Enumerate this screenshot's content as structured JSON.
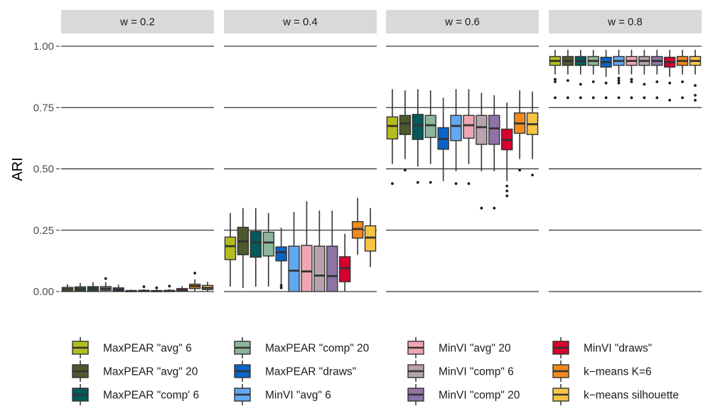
{
  "chart_data": {
    "type": "boxplot",
    "title": "",
    "xlabel": "",
    "ylabel": "ARI",
    "ylim": [
      0,
      1
    ],
    "y_ticks": [
      0.0,
      0.25,
      0.5,
      0.75,
      1.0
    ],
    "y_tick_labels": [
      "0.00",
      "0.25",
      "0.50",
      "0.75",
      "1.00"
    ],
    "legend_position": "bottom",
    "grid": true,
    "methods": [
      {
        "name": "MaxPEAR \"avg\" 6",
        "color": "#B4BD1D"
      },
      {
        "name": "MaxPEAR \"avg\" 20",
        "color": "#4C5A2E"
      },
      {
        "name": "MaxPEAR \"comp' 6",
        "color": "#045A5A"
      },
      {
        "name": "MaxPEAR \"comp\" 20",
        "color": "#8DB59A"
      },
      {
        "name": "MaxPEAR \"draws\"",
        "color": "#0A64C8"
      },
      {
        "name": "MinVI \"avg\" 6",
        "color": "#63A7EF"
      },
      {
        "name": "MinVI \"avg\" 20",
        "color": "#F0A6B2"
      },
      {
        "name": "MinVI \"comp\" 6",
        "color": "#B8A2AE"
      },
      {
        "name": "MinVI \"comp\" 20",
        "color": "#8E73A8"
      },
      {
        "name": "MinVI \"draws\"",
        "color": "#D8002E"
      },
      {
        "name": "k−means K=6",
        "color": "#F28A1E"
      },
      {
        "name": "k−means silhouette",
        "color": "#F7C444"
      }
    ],
    "panels": [
      {
        "label": "w = 0.2",
        "boxes": [
          {
            "q1": 0.003,
            "median": 0.01,
            "q3": 0.017,
            "lo": 0.0,
            "hi": 0.03,
            "outliers": []
          },
          {
            "q1": 0.004,
            "median": 0.011,
            "q3": 0.019,
            "lo": 0.0,
            "hi": 0.035,
            "outliers": []
          },
          {
            "q1": 0.004,
            "median": 0.012,
            "q3": 0.02,
            "lo": 0.0,
            "hi": 0.038,
            "outliers": []
          },
          {
            "q1": 0.005,
            "median": 0.012,
            "q3": 0.02,
            "lo": 0.0,
            "hi": 0.038,
            "outliers": [
              0.053
            ]
          },
          {
            "q1": 0.003,
            "median": 0.008,
            "q3": 0.015,
            "lo": 0.0,
            "hi": 0.028,
            "outliers": []
          },
          {
            "q1": 0.0,
            "median": 0.002,
            "q3": 0.004,
            "lo": 0.0,
            "hi": 0.008,
            "outliers": []
          },
          {
            "q1": 0.0,
            "median": 0.002,
            "q3": 0.005,
            "lo": 0.0,
            "hi": 0.01,
            "outliers": [
              0.02
            ]
          },
          {
            "q1": 0.0,
            "median": 0.002,
            "q3": 0.004,
            "lo": 0.0,
            "hi": 0.008,
            "outliers": [
              0.015
            ]
          },
          {
            "q1": 0.0,
            "median": 0.002,
            "q3": 0.005,
            "lo": 0.0,
            "hi": 0.01,
            "outliers": [
              0.022
            ]
          },
          {
            "q1": 0.002,
            "median": 0.005,
            "q3": 0.012,
            "lo": 0.0,
            "hi": 0.022,
            "outliers": []
          },
          {
            "q1": 0.012,
            "median": 0.022,
            "q3": 0.03,
            "lo": 0.0,
            "hi": 0.05,
            "outliers": [
              0.075
            ]
          },
          {
            "q1": 0.008,
            "median": 0.015,
            "q3": 0.025,
            "lo": 0.0,
            "hi": 0.04,
            "outliers": []
          }
        ]
      },
      {
        "label": "w = 0.4",
        "boxes": [
          {
            "q1": 0.13,
            "median": 0.185,
            "q3": 0.222,
            "lo": 0.02,
            "hi": 0.32,
            "outliers": []
          },
          {
            "q1": 0.15,
            "median": 0.205,
            "q3": 0.262,
            "lo": 0.015,
            "hi": 0.34,
            "outliers": []
          },
          {
            "q1": 0.14,
            "median": 0.2,
            "q3": 0.245,
            "lo": 0.02,
            "hi": 0.34,
            "outliers": []
          },
          {
            "q1": 0.145,
            "median": 0.2,
            "q3": 0.242,
            "lo": 0.02,
            "hi": 0.32,
            "outliers": []
          },
          {
            "q1": 0.125,
            "median": 0.16,
            "q3": 0.182,
            "lo": 0.03,
            "hi": 0.26,
            "outliers": [
              0.015,
              0.025
            ]
          },
          {
            "q1": 0.0,
            "median": 0.085,
            "q3": 0.185,
            "lo": 0.0,
            "hi": 0.325,
            "outliers": []
          },
          {
            "q1": 0.0,
            "median": 0.082,
            "q3": 0.188,
            "lo": 0.0,
            "hi": 0.368,
            "outliers": []
          },
          {
            "q1": 0.0,
            "median": 0.065,
            "q3": 0.185,
            "lo": 0.0,
            "hi": 0.33,
            "outliers": []
          },
          {
            "q1": 0.0,
            "median": 0.063,
            "q3": 0.185,
            "lo": 0.0,
            "hi": 0.33,
            "outliers": []
          },
          {
            "q1": 0.04,
            "median": 0.095,
            "q3": 0.142,
            "lo": 0.0,
            "hi": 0.235,
            "outliers": []
          },
          {
            "q1": 0.218,
            "median": 0.255,
            "q3": 0.285,
            "lo": 0.15,
            "hi": 0.382,
            "outliers": []
          },
          {
            "q1": 0.165,
            "median": 0.22,
            "q3": 0.268,
            "lo": 0.1,
            "hi": 0.34,
            "outliers": []
          }
        ]
      },
      {
        "label": "w = 0.6",
        "boxes": [
          {
            "q1": 0.622,
            "median": 0.675,
            "q3": 0.712,
            "lo": 0.52,
            "hi": 0.825,
            "outliers": [
              0.44
            ]
          },
          {
            "q1": 0.64,
            "median": 0.685,
            "q3": 0.718,
            "lo": 0.54,
            "hi": 0.82,
            "outliers": [
              0.495
            ]
          },
          {
            "q1": 0.62,
            "median": 0.678,
            "q3": 0.722,
            "lo": 0.51,
            "hi": 0.825,
            "outliers": [
              0.445
            ]
          },
          {
            "q1": 0.628,
            "median": 0.678,
            "q3": 0.718,
            "lo": 0.52,
            "hi": 0.82,
            "outliers": [
              0.445
            ]
          },
          {
            "q1": 0.58,
            "median": 0.622,
            "q3": 0.668,
            "lo": 0.45,
            "hi": 0.79,
            "outliers": []
          },
          {
            "q1": 0.615,
            "median": 0.675,
            "q3": 0.718,
            "lo": 0.49,
            "hi": 0.825,
            "outliers": [
              0.44
            ]
          },
          {
            "q1": 0.625,
            "median": 0.678,
            "q3": 0.718,
            "lo": 0.52,
            "hi": 0.825,
            "outliers": [
              0.44
            ]
          },
          {
            "q1": 0.6,
            "median": 0.67,
            "q3": 0.718,
            "lo": 0.49,
            "hi": 0.81,
            "outliers": [
              0.34
            ]
          },
          {
            "q1": 0.6,
            "median": 0.665,
            "q3": 0.718,
            "lo": 0.49,
            "hi": 0.8,
            "outliers": [
              0.34
            ]
          },
          {
            "q1": 0.578,
            "median": 0.618,
            "q3": 0.662,
            "lo": 0.45,
            "hi": 0.77,
            "outliers": [
              0.39,
              0.41,
              0.43
            ]
          },
          {
            "q1": 0.645,
            "median": 0.685,
            "q3": 0.728,
            "lo": 0.54,
            "hi": 0.82,
            "outliers": [
              0.495
            ]
          },
          {
            "q1": 0.64,
            "median": 0.682,
            "q3": 0.728,
            "lo": 0.54,
            "hi": 0.815,
            "outliers": [
              0.475
            ]
          }
        ]
      },
      {
        "label": "w = 0.8",
        "boxes": [
          {
            "q1": 0.922,
            "median": 0.94,
            "q3": 0.958,
            "lo": 0.885,
            "hi": 0.985,
            "outliers": [
              0.79,
              0.855,
              0.865
            ]
          },
          {
            "q1": 0.922,
            "median": 0.94,
            "q3": 0.958,
            "lo": 0.885,
            "hi": 0.985,
            "outliers": [
              0.79,
              0.86
            ]
          },
          {
            "q1": 0.922,
            "median": 0.94,
            "q3": 0.958,
            "lo": 0.885,
            "hi": 0.985,
            "outliers": [
              0.79,
              0.845
            ]
          },
          {
            "q1": 0.922,
            "median": 0.94,
            "q3": 0.958,
            "lo": 0.885,
            "hi": 0.985,
            "outliers": [
              0.79,
              0.855
            ]
          },
          {
            "q1": 0.915,
            "median": 0.935,
            "q3": 0.955,
            "lo": 0.875,
            "hi": 0.985,
            "outliers": [
              0.79,
              0.85
            ]
          },
          {
            "q1": 0.922,
            "median": 0.94,
            "q3": 0.958,
            "lo": 0.885,
            "hi": 0.985,
            "outliers": [
              0.79,
              0.85,
              0.86,
              0.87
            ]
          },
          {
            "q1": 0.922,
            "median": 0.94,
            "q3": 0.958,
            "lo": 0.885,
            "hi": 0.985,
            "outliers": [
              0.79,
              0.855,
              0.865
            ]
          },
          {
            "q1": 0.922,
            "median": 0.94,
            "q3": 0.958,
            "lo": 0.885,
            "hi": 0.985,
            "outliers": [
              0.79,
              0.845
            ]
          },
          {
            "q1": 0.922,
            "median": 0.94,
            "q3": 0.958,
            "lo": 0.885,
            "hi": 0.985,
            "outliers": [
              0.79,
              0.855
            ]
          },
          {
            "q1": 0.915,
            "median": 0.935,
            "q3": 0.955,
            "lo": 0.875,
            "hi": 0.985,
            "outliers": [
              0.78,
              0.85
            ]
          },
          {
            "q1": 0.922,
            "median": 0.94,
            "q3": 0.958,
            "lo": 0.885,
            "hi": 0.985,
            "outliers": [
              0.79,
              0.855
            ]
          },
          {
            "q1": 0.922,
            "median": 0.94,
            "q3": 0.958,
            "lo": 0.885,
            "hi": 0.985,
            "outliers": [
              0.78,
              0.8,
              0.84
            ]
          }
        ]
      }
    ]
  }
}
